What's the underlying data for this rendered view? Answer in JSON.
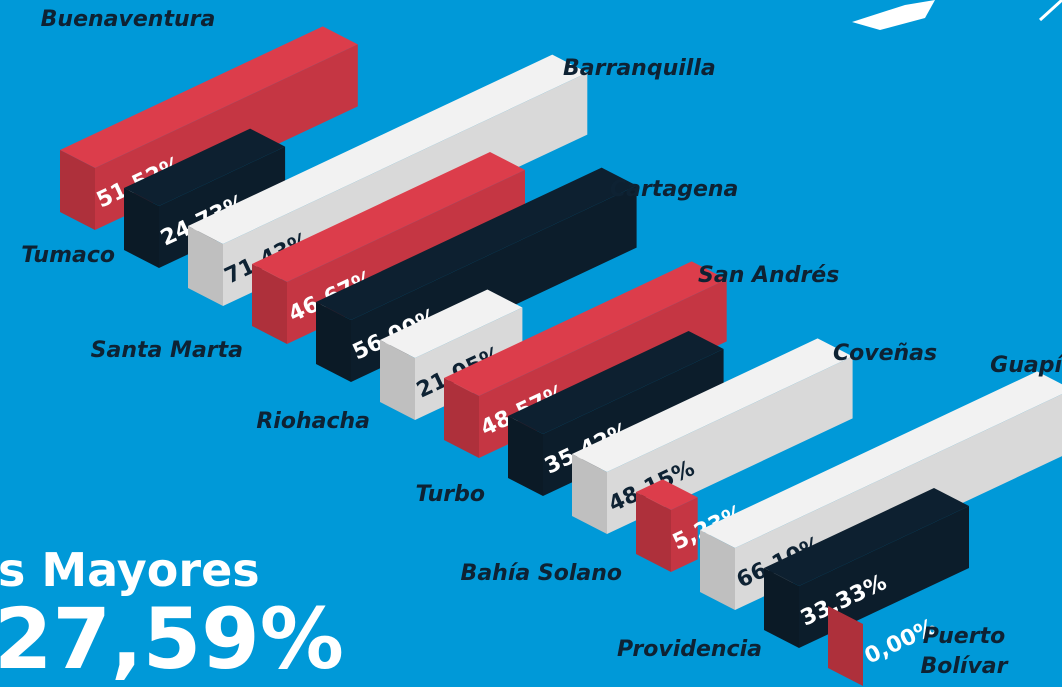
{
  "chart_data": {
    "type": "bar3d",
    "categories": [
      "Buenaventura",
      "Tumaco",
      "Barranquilla",
      "Santa Marta",
      "Cartagena",
      "Riohacha",
      "San Andrés",
      "Turbo",
      "Coveñas",
      "Bahía Solano",
      "Guapí",
      "Providencia",
      "Puerto Bolívar"
    ],
    "values": [
      51.52,
      24.73,
      71.43,
      46.67,
      56.0,
      21.05,
      48.57,
      35.42,
      48.15,
      5.23,
      66.1,
      33.33,
      0.0
    ],
    "value_labels": [
      "51,52%",
      "24,73%",
      "71,43%",
      "46,67%",
      "56,00%",
      "21,05%",
      "48,57%",
      "35,42%",
      "48,15%",
      "5,23%",
      "66,10%",
      "33,33%",
      "0,00%"
    ],
    "colors": [
      "#e8404f",
      "#0e2233",
      "#ffffff",
      "#e8404f",
      "#0e2233",
      "#ffffff",
      "#e8404f",
      "#0e2233",
      "#ffffff",
      "#e8404f",
      "#ffffff",
      "#0e2233",
      "#e8404f"
    ],
    "annotations": [
      "s Mayores",
      "27,59%"
    ]
  }
}
